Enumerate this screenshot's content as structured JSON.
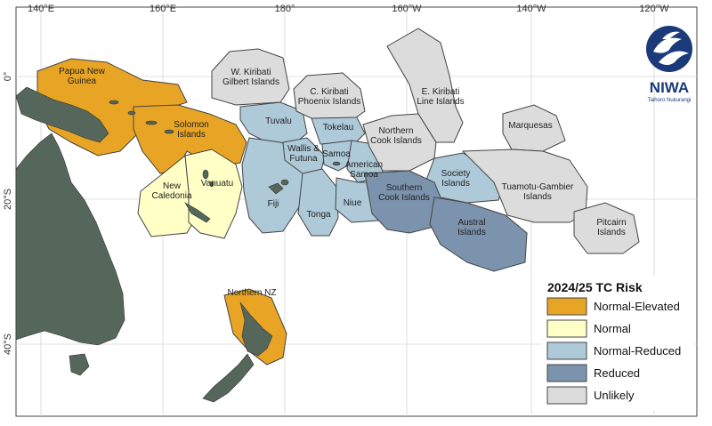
{
  "colors": {
    "Normal-Elevated": "#e8a424",
    "Normal": "#ffffc6",
    "Normal-Reduced": "#aec9d8",
    "Reduced": "#7c93ad",
    "Unlikely": "#dcdcdc"
  },
  "axis": {
    "longitudes": [
      "140°E",
      "160°E",
      "180°",
      "160°W",
      "140°W",
      "120°W"
    ],
    "latitudes": [
      "0°",
      "20°S",
      "40°S"
    ]
  },
  "regions": [
    {
      "id": "papua-new-guinea",
      "label": [
        "Papua New",
        "Guinea"
      ],
      "risk": "Normal-Elevated"
    },
    {
      "id": "solomon-islands",
      "label": [
        "Solomon",
        "Islands"
      ],
      "risk": "Normal-Elevated"
    },
    {
      "id": "northern-nz",
      "label": [
        "Northern NZ"
      ],
      "risk": "Normal-Elevated"
    },
    {
      "id": "new-caledonia",
      "label": [
        "New",
        "Caledonia"
      ],
      "risk": "Normal"
    },
    {
      "id": "vanuatu",
      "label": [
        "Vanuatu"
      ],
      "risk": "Normal"
    },
    {
      "id": "tuvalu",
      "label": [
        "Tuvalu"
      ],
      "risk": "Normal-Reduced"
    },
    {
      "id": "fiji",
      "label": [
        "Fiji"
      ],
      "risk": "Normal-Reduced"
    },
    {
      "id": "wallis-futuna",
      "label": [
        "Wallis &",
        "Futuna"
      ],
      "risk": "Normal-Reduced"
    },
    {
      "id": "tokelau",
      "label": [
        "Tokelau"
      ],
      "risk": "Normal-Reduced"
    },
    {
      "id": "samoa",
      "label": [
        "Samoa"
      ],
      "risk": "Normal-Reduced"
    },
    {
      "id": "american-samoa",
      "label": [
        "American",
        "Samoa"
      ],
      "risk": "Normal-Reduced"
    },
    {
      "id": "tonga",
      "label": [
        "Tonga"
      ],
      "risk": "Normal-Reduced"
    },
    {
      "id": "niue",
      "label": [
        "Niue"
      ],
      "risk": "Normal-Reduced"
    },
    {
      "id": "society-islands",
      "label": [
        "Society",
        "Islands"
      ],
      "risk": "Normal-Reduced"
    },
    {
      "id": "southern-cook-islands",
      "label": [
        "Southern",
        "Cook Islands"
      ],
      "risk": "Reduced"
    },
    {
      "id": "austral-islands",
      "label": [
        "Austral",
        "Islands"
      ],
      "risk": "Reduced"
    },
    {
      "id": "w-kiribati",
      "label": [
        "W. Kiribati",
        "Gilbert Islands"
      ],
      "risk": "Unlikely"
    },
    {
      "id": "c-kiribati",
      "label": [
        "C. Kiribati",
        "Phoenix Islands"
      ],
      "risk": "Unlikely"
    },
    {
      "id": "e-kiribati",
      "label": [
        "E. Kiribati",
        "Line Islands"
      ],
      "risk": "Unlikely"
    },
    {
      "id": "northern-cook-islands",
      "label": [
        "Northern",
        "Cook Islands"
      ],
      "risk": "Unlikely"
    },
    {
      "id": "marquesas",
      "label": [
        "Marquesas"
      ],
      "risk": "Unlikely"
    },
    {
      "id": "tuamotu-gambier",
      "label": [
        "Tuamotu-Gambier",
        "Islands"
      ],
      "risk": "Unlikely"
    },
    {
      "id": "pitcairn-islands",
      "label": [
        "Pitcairn",
        "Islands"
      ],
      "risk": "Unlikely"
    }
  ],
  "legend": {
    "title": "2024/25 TC Risk",
    "items": [
      "Normal-Elevated",
      "Normal",
      "Normal-Reduced",
      "Reduced",
      "Unlikely"
    ]
  },
  "logo": {
    "name": "NIWA",
    "tagline": "Taihoro Nukurangi"
  }
}
